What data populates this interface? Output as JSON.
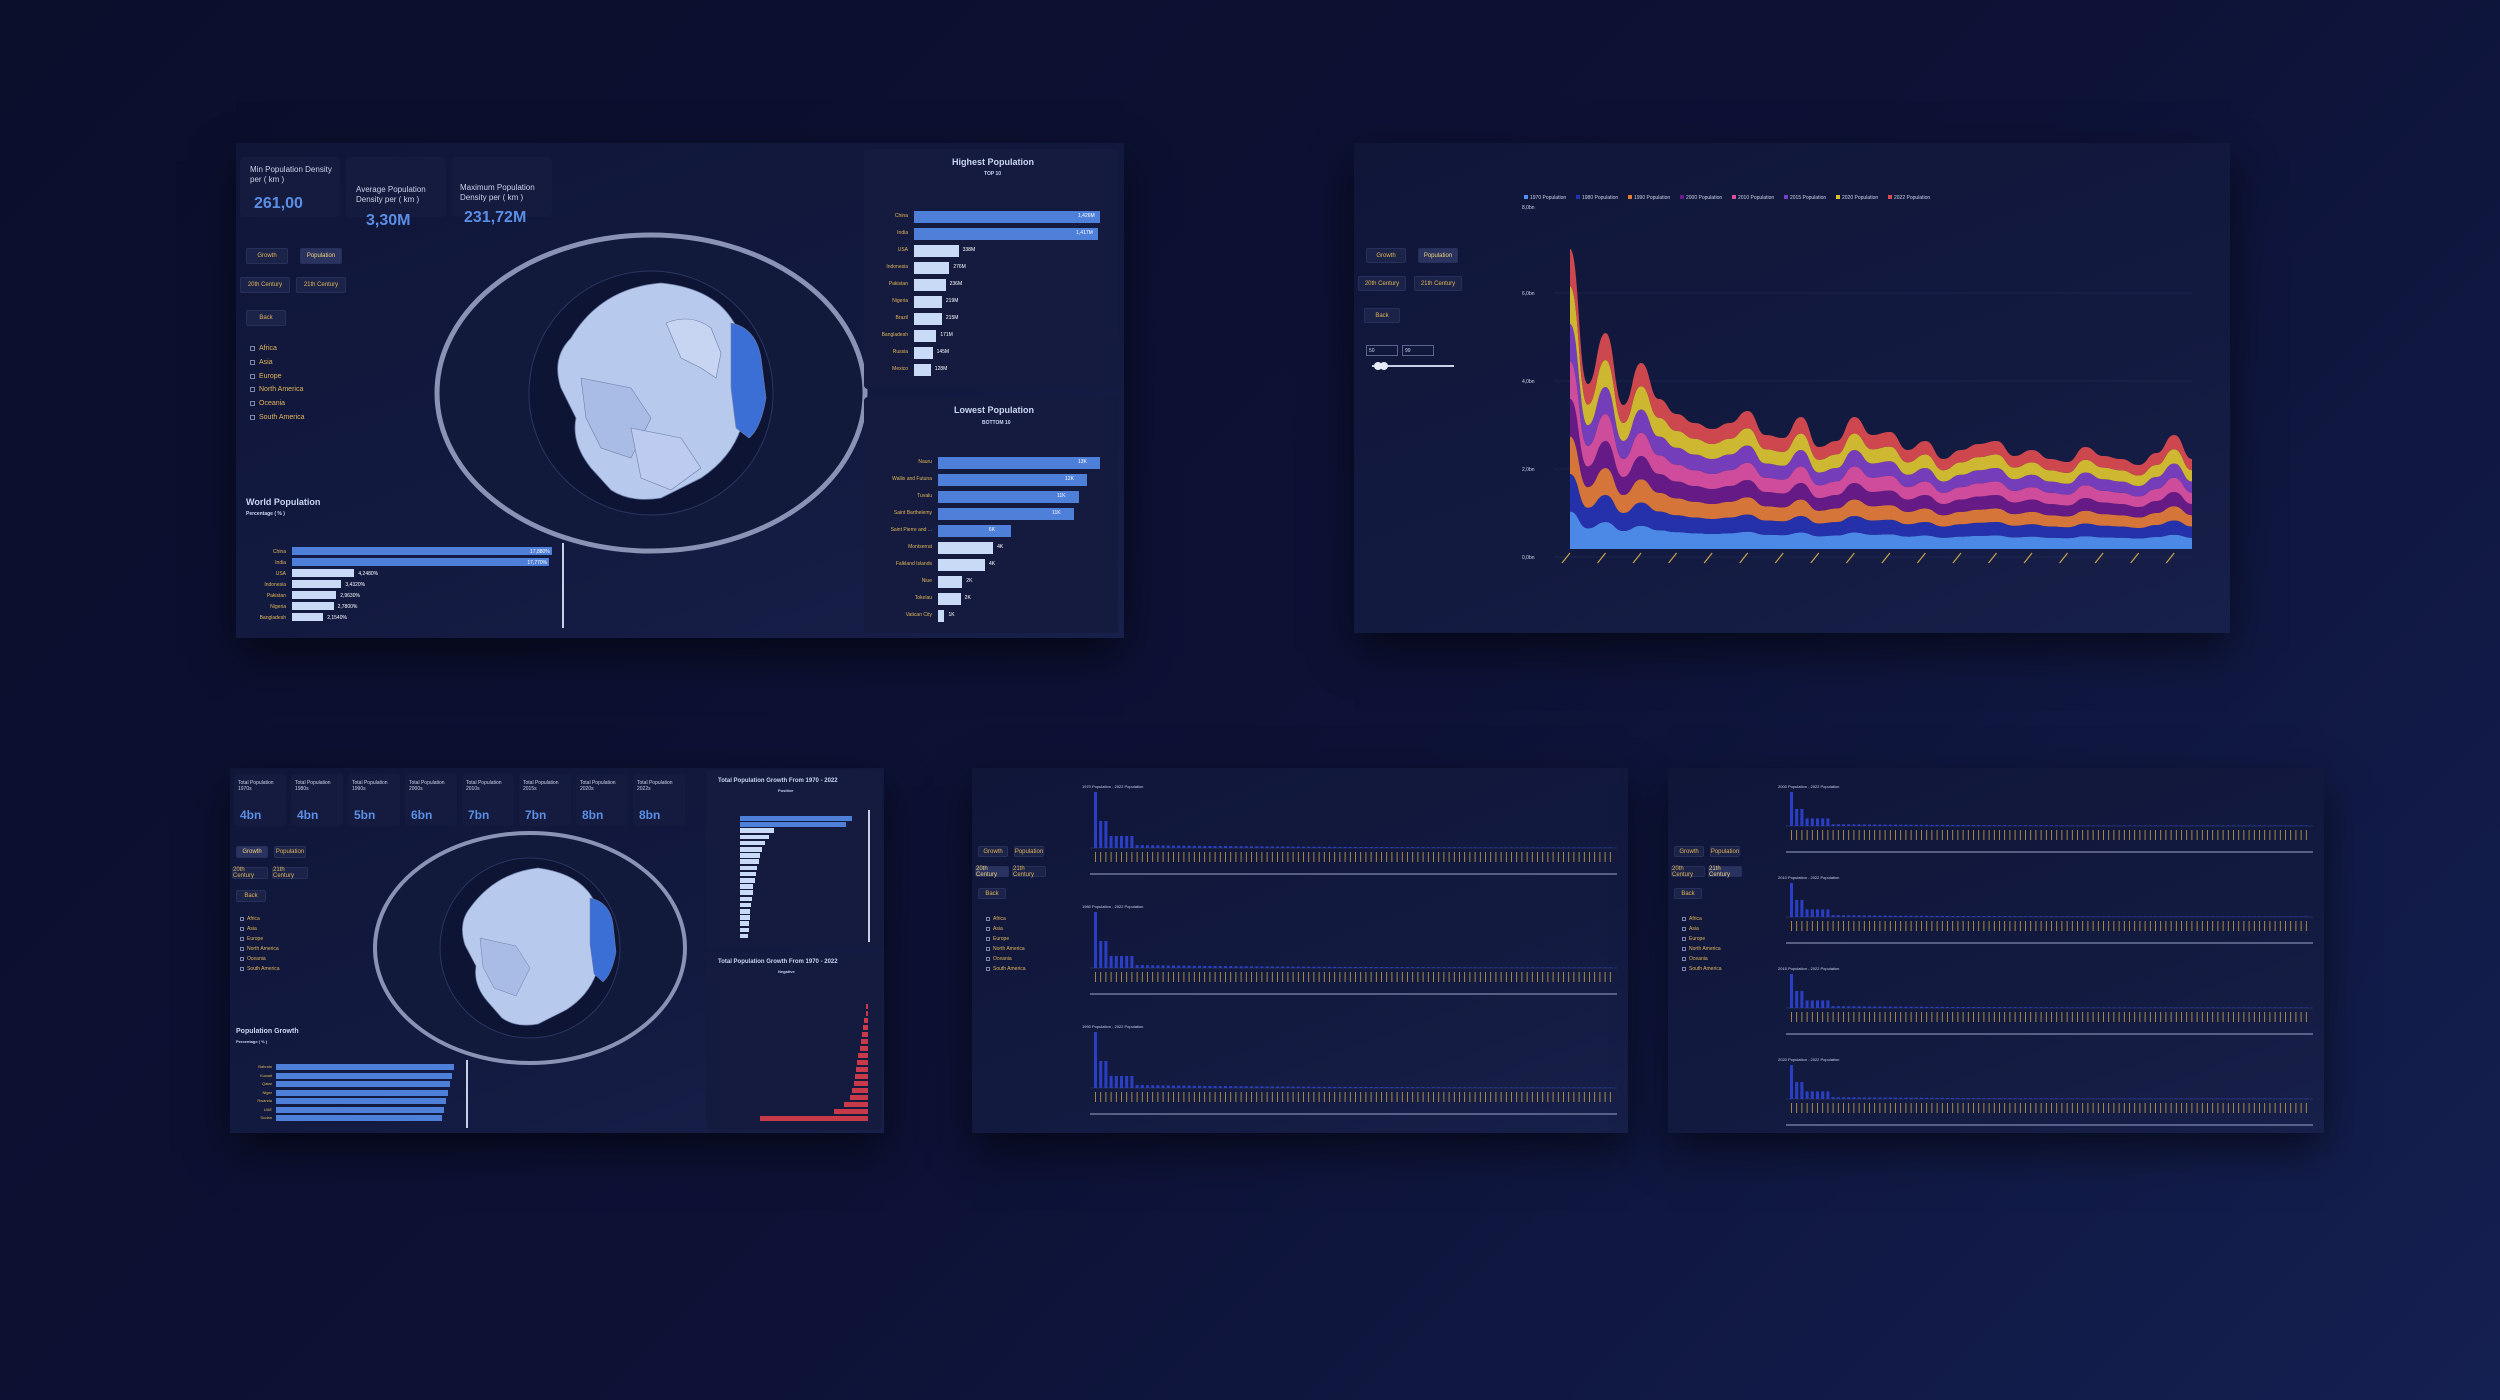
{
  "panel1": {
    "kpis": [
      {
        "label": "Min Population Density per ( km )",
        "value": "261,00"
      },
      {
        "label": "Average Population Density per ( km )",
        "value": "3,30M"
      },
      {
        "label": "Maximum Population Density per ( km )",
        "value": "231,72M"
      }
    ],
    "buttons": [
      "Growth",
      "Population",
      "20th Century",
      "21th Century",
      "Back"
    ],
    "continents": [
      "Africa",
      "Asia",
      "Europe",
      "North America",
      "Oceania",
      "South America"
    ],
    "world_title": "World Population",
    "world_sub": "Percentage ( % )",
    "world_bars": [
      {
        "label": "China",
        "value": "17,880%",
        "frac": 1.0
      },
      {
        "label": "India",
        "value": "17,770%",
        "frac": 0.99
      },
      {
        "label": "USA",
        "value": "4,2480%",
        "frac": 0.24
      },
      {
        "label": "Indonesia",
        "value": "3,4320%",
        "frac": 0.19
      },
      {
        "label": "Pakistan",
        "value": "2,9630%",
        "frac": 0.17
      },
      {
        "label": "Nigeria",
        "value": "2,7800%",
        "frac": 0.16
      },
      {
        "label": "Bangladesh",
        "value": "2,1540%",
        "frac": 0.12
      }
    ],
    "highest_title": "Highest Population",
    "highest_sub": "TOP 10",
    "highest_bars": [
      {
        "label": "China",
        "value": "1,426M",
        "frac": 1.0
      },
      {
        "label": "India",
        "value": "1,417M",
        "frac": 0.99
      },
      {
        "label": "USA",
        "value": "338M",
        "frac": 0.24
      },
      {
        "label": "Indonesia",
        "value": "276M",
        "frac": 0.19
      },
      {
        "label": "Pakistan",
        "value": "236M",
        "frac": 0.17
      },
      {
        "label": "Nigeria",
        "value": "219M",
        "frac": 0.15
      },
      {
        "label": "Brazil",
        "value": "215M",
        "frac": 0.15
      },
      {
        "label": "Bangladesh",
        "value": "171M",
        "frac": 0.12
      },
      {
        "label": "Russia",
        "value": "145M",
        "frac": 0.1
      },
      {
        "label": "Mexico",
        "value": "128M",
        "frac": 0.09
      }
    ],
    "lowest_title": "Lowest Population",
    "lowest_sub": "BOTTOM 10",
    "lowest_bars": [
      {
        "label": "Nauru",
        "value": "13K",
        "frac": 1.0
      },
      {
        "label": "Wallis and Futuna",
        "value": "12K",
        "frac": 0.92
      },
      {
        "label": "Tuvalu",
        "value": "11K",
        "frac": 0.87
      },
      {
        "label": "Saint Barthelemy",
        "value": "11K",
        "frac": 0.84
      },
      {
        "label": "Saint Pierre and ...",
        "value": "6K",
        "frac": 0.45
      },
      {
        "label": "Montserrat",
        "value": "4K",
        "frac": 0.34
      },
      {
        "label": "Falkland Islands",
        "value": "4K",
        "frac": 0.29
      },
      {
        "label": "Niue",
        "value": "2K",
        "frac": 0.15
      },
      {
        "label": "Tokelau",
        "value": "2K",
        "frac": 0.14
      },
      {
        "label": "Vatican City",
        "value": "1K",
        "frac": 0.04
      }
    ]
  },
  "panel2": {
    "legend": [
      "1970 Population",
      "1980 Population",
      "1990 Population",
      "2000 Population",
      "2010 Population",
      "2015 Population",
      "2020 Population",
      "2022 Population"
    ],
    "legend_colors": [
      "#4f8ff0",
      "#2533b0",
      "#e07a3a",
      "#6a1a8a",
      "#d84fa0",
      "#7a3fc0",
      "#d8c030",
      "#d84a50"
    ],
    "ytick_top": "8,0bn",
    "yticks": [
      "6,0bn",
      "4,0bn",
      "2,0bn",
      "0,0bn"
    ],
    "buttons": [
      "Growth",
      "Population",
      "20th Century",
      "21th Century",
      "Back"
    ],
    "slider_values": [
      "50",
      "99"
    ],
    "stream_values": [
      1.0,
      0.55,
      0.72,
      0.48,
      0.62,
      0.5,
      0.45,
      0.42,
      0.4,
      0.42,
      0.46,
      0.38,
      0.37,
      0.44,
      0.34,
      0.36,
      0.44,
      0.38,
      0.39,
      0.33,
      0.36,
      0.3,
      0.33,
      0.35,
      0.36,
      0.31,
      0.33,
      0.3,
      0.29,
      0.34,
      0.31,
      0.3,
      0.28,
      0.32,
      0.38,
      0.3
    ]
  },
  "panel3": {
    "kpis": [
      {
        "label": "Total Population 1970s",
        "value": "4bn"
      },
      {
        "label": "Total Population 1980s",
        "value": "4bn"
      },
      {
        "label": "Total Population 1990s",
        "value": "5bn"
      },
      {
        "label": "Total Population 2000s",
        "value": "6bn"
      },
      {
        "label": "Total Population 2010s",
        "value": "7bn"
      },
      {
        "label": "Total Population 2015s",
        "value": "7bn"
      },
      {
        "label": "Total Population 2020s",
        "value": "8bn"
      },
      {
        "label": "Total Population 2022s",
        "value": "8bn"
      }
    ],
    "buttons": [
      "Growth",
      "Population",
      "20th Century",
      "21th Century",
      "Back"
    ],
    "continents": [
      "Africa",
      "Asia",
      "Europe",
      "North America",
      "Oceania",
      "South America"
    ],
    "growth_title": "Population Growth",
    "growth_sub": "Percentage ( % )",
    "growth_labels": [
      "Bahrain",
      "Kuwait",
      "Qatar",
      "Niger",
      "Rwanda",
      "UAE",
      "Sudan"
    ],
    "pos_title": "Total Population Growth From 1970 - 2022",
    "pos_sub": "Positive",
    "pos_bars": [
      1.0,
      0.95,
      0.3,
      0.26,
      0.22,
      0.2,
      0.18,
      0.17,
      0.15,
      0.14,
      0.13,
      0.12,
      0.12,
      0.11,
      0.1,
      0.09,
      0.09,
      0.08,
      0.08,
      0.07
    ],
    "neg_title": "Total Population Growth From 1970 - 2022",
    "neg_sub": "Negative",
    "neg_bars": [
      0.01,
      0.02,
      0.03,
      0.04,
      0.05,
      0.06,
      0.07,
      0.08,
      0.09,
      0.1,
      0.11,
      0.12,
      0.13,
      0.15,
      0.2,
      0.28,
      0.9
    ]
  },
  "panel4": {
    "charts": [
      "1970 Population - 2022 Population",
      "1980 Population - 2022 Population",
      "1990 Population - 2022 Population"
    ],
    "buttons": [
      "Growth",
      "Population",
      "20th Century",
      "21th Century",
      "Back"
    ],
    "continents": [
      "Africa",
      "Asia",
      "Europe",
      "North America",
      "Oceania",
      "South America"
    ]
  },
  "panel5": {
    "charts": [
      "2000 Population - 2022 Population",
      "2010 Population - 2022 Population",
      "2015 Population - 2022 Population",
      "2020 Population - 2022 Population"
    ],
    "buttons": [
      "Growth",
      "Population",
      "20th Century",
      "21th Century",
      "Back"
    ],
    "continents": [
      "Africa",
      "Asia",
      "Europe",
      "North America",
      "Oceania",
      "South America"
    ]
  }
}
